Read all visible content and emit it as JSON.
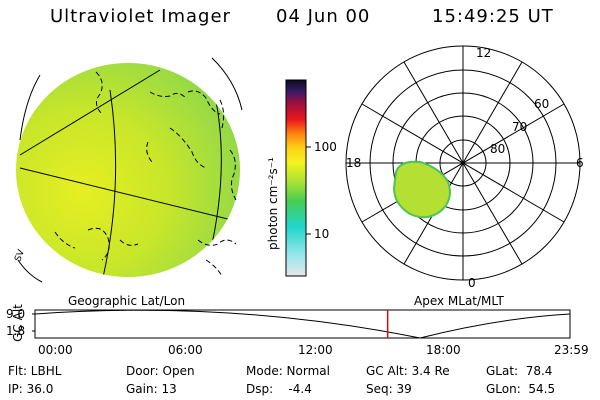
{
  "header": {
    "instrument": "Ultraviolet Imager",
    "date": "04 Jun 00",
    "time": "15:49:25 UT"
  },
  "colorbar": {
    "unit_label": "photon cm⁻²s⁻¹",
    "ticks": [
      "100",
      "10"
    ]
  },
  "geo_panel": {
    "caption": "Geographic Lat/Lon",
    "region_label": "SV"
  },
  "polar_panel": {
    "caption": "Apex MLat/MLT",
    "mlt_labels": [
      "12",
      "18",
      "6",
      "0"
    ],
    "mlat_labels": [
      "60",
      "70",
      "80"
    ]
  },
  "timeline": {
    "axis_label": "GC Alt",
    "y_ticks": [
      "9.0",
      "1.8"
    ],
    "time_ticks": [
      "00:00",
      "06:00",
      "12:00",
      "18:00",
      "23:59"
    ],
    "current_time_hours": 15.82
  },
  "footer": {
    "flt": "Flt: LBHL",
    "ip": "IP: 36.0",
    "door": "Door: Open",
    "gain": "Gain: 13",
    "mode": "Mode: Normal",
    "dsp": "Dsp:    -4.4",
    "gcalt": "GC Alt: 3.4 Re",
    "seq": "Seq: 39",
    "glat": "GLat:  78.4",
    "glon": "GLon:  54.5"
  }
}
